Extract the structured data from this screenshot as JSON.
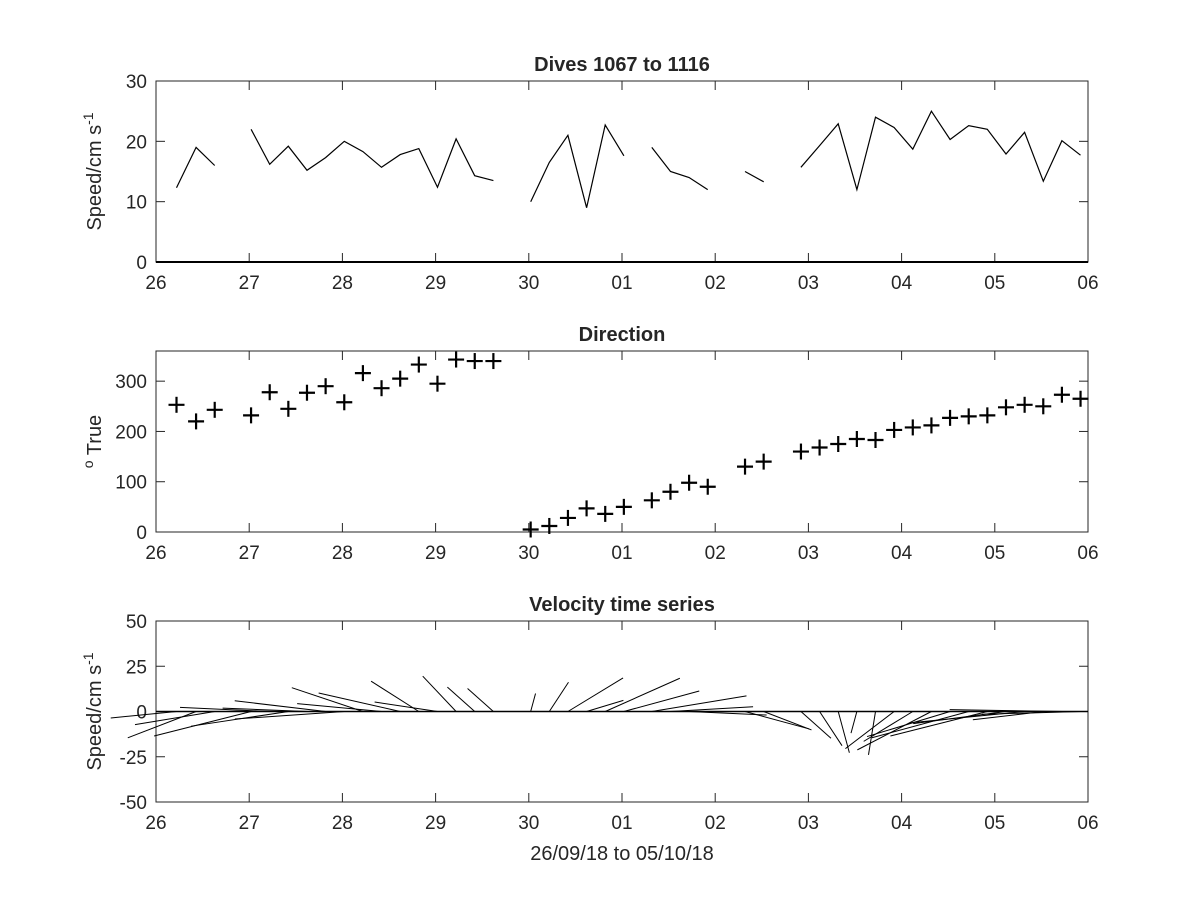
{
  "chart_data": [
    {
      "type": "line",
      "title": "Dives 1067 to 1116",
      "ylabel": "Speed/cm s",
      "ylabel_sup": "-1",
      "xlim": [
        0,
        10
      ],
      "ylim": [
        0,
        30
      ],
      "xticks": [
        0,
        1,
        2,
        3,
        4,
        5,
        6,
        7,
        8,
        9,
        10
      ],
      "xticklabels": [
        "26",
        "27",
        "28",
        "29",
        "30",
        "01",
        "02",
        "03",
        "04",
        "05",
        "06"
      ],
      "yticks": [
        0,
        10,
        20,
        30
      ],
      "yticklabels": [
        "0",
        "10",
        "20",
        "30"
      ],
      "segments": [
        [
          [
            0.22,
            12.3
          ],
          [
            0.43,
            19.0
          ],
          [
            0.63,
            16.0
          ]
        ],
        [
          [
            1.02,
            22.0
          ],
          [
            1.22,
            16.2
          ],
          [
            1.42,
            19.2
          ],
          [
            1.62,
            15.2
          ],
          [
            1.82,
            17.3
          ],
          [
            2.02,
            20.0
          ],
          [
            2.22,
            18.3
          ],
          [
            2.42,
            15.7
          ],
          [
            2.62,
            17.8
          ],
          [
            2.82,
            18.8
          ],
          [
            3.02,
            12.4
          ],
          [
            3.22,
            20.4
          ],
          [
            3.42,
            14.3
          ],
          [
            3.62,
            13.5
          ]
        ],
        [
          [
            4.02,
            10.0
          ],
          [
            4.22,
            16.5
          ],
          [
            4.42,
            21.0
          ],
          [
            4.62,
            9.0
          ],
          [
            4.82,
            22.7
          ],
          [
            5.02,
            17.6
          ]
        ],
        [
          [
            5.32,
            19.0
          ],
          [
            5.52,
            15.0
          ],
          [
            5.72,
            14.0
          ],
          [
            5.92,
            12.0
          ]
        ],
        [
          [
            6.32,
            15.0
          ],
          [
            6.52,
            13.3
          ]
        ],
        [
          [
            6.92,
            15.7
          ],
          [
            7.12,
            19.3
          ],
          [
            7.32,
            22.9
          ],
          [
            7.52,
            12.0
          ],
          [
            7.72,
            24.0
          ],
          [
            7.92,
            22.3
          ],
          [
            8.12,
            18.7
          ],
          [
            8.32,
            25.0
          ],
          [
            8.52,
            20.3
          ],
          [
            8.72,
            22.6
          ],
          [
            8.92,
            22.0
          ],
          [
            9.12,
            17.9
          ],
          [
            9.32,
            21.5
          ],
          [
            9.52,
            13.4
          ],
          [
            9.72,
            20.1
          ],
          [
            9.92,
            17.7
          ]
        ]
      ]
    },
    {
      "type": "scatter",
      "title": "Direction",
      "ylabel": "True",
      "ylabel_sup": "o",
      "xlim": [
        0,
        10
      ],
      "ylim": [
        0,
        360
      ],
      "xticks": [
        0,
        1,
        2,
        3,
        4,
        5,
        6,
        7,
        8,
        9,
        10
      ],
      "xticklabels": [
        "26",
        "27",
        "28",
        "29",
        "30",
        "01",
        "02",
        "03",
        "04",
        "05",
        "06"
      ],
      "yticks": [
        0,
        100,
        200,
        300
      ],
      "yticklabels": [
        "0",
        "100",
        "200",
        "300"
      ],
      "marker": "+",
      "points": [
        [
          0.22,
          253
        ],
        [
          0.43,
          220
        ],
        [
          0.63,
          243
        ],
        [
          1.02,
          232
        ],
        [
          1.22,
          278
        ],
        [
          1.42,
          245
        ],
        [
          1.62,
          277
        ],
        [
          1.82,
          290
        ],
        [
          2.02,
          258
        ],
        [
          2.22,
          316
        ],
        [
          2.42,
          286
        ],
        [
          2.62,
          305
        ],
        [
          2.82,
          333
        ],
        [
          3.02,
          295
        ],
        [
          3.22,
          343
        ],
        [
          3.42,
          340
        ],
        [
          3.62,
          340
        ],
        [
          4.02,
          5
        ],
        [
          4.22,
          12
        ],
        [
          4.42,
          28
        ],
        [
          4.62,
          47
        ],
        [
          4.82,
          36
        ],
        [
          5.02,
          50
        ],
        [
          5.32,
          63
        ],
        [
          5.52,
          80
        ],
        [
          5.72,
          98
        ],
        [
          5.92,
          90
        ],
        [
          6.32,
          130
        ],
        [
          6.52,
          140
        ],
        [
          6.92,
          160
        ],
        [
          7.12,
          168
        ],
        [
          7.32,
          175
        ],
        [
          7.52,
          185
        ],
        [
          7.72,
          183
        ],
        [
          7.92,
          203
        ],
        [
          8.12,
          208
        ],
        [
          8.32,
          212
        ],
        [
          8.52,
          227
        ],
        [
          8.72,
          230
        ],
        [
          8.92,
          232
        ],
        [
          9.12,
          248
        ],
        [
          9.32,
          253
        ],
        [
          9.52,
          250
        ],
        [
          9.72,
          273
        ],
        [
          9.92,
          265
        ]
      ]
    },
    {
      "type": "quiver",
      "title": "Velocity time series",
      "ylabel": "Speed/cm s",
      "ylabel_sup": "-1",
      "xlabel": "26/09/18 to 05/10/18",
      "xlim": [
        0,
        10
      ],
      "ylim": [
        -50,
        50
      ],
      "xticks": [
        0,
        1,
        2,
        3,
        4,
        5,
        6,
        7,
        8,
        9,
        10
      ],
      "xticklabels": [
        "26",
        "27",
        "28",
        "29",
        "30",
        "01",
        "02",
        "03",
        "04",
        "05",
        "06"
      ],
      "yticks": [
        -50,
        -25,
        0,
        25,
        50
      ],
      "yticklabels": [
        "-50",
        "-25",
        "0",
        "25",
        "50"
      ],
      "x_per_unit": 0.06,
      "vectors": [
        [
          0.22,
          12.3,
          253
        ],
        [
          0.43,
          19.0,
          220
        ],
        [
          0.63,
          16.0,
          243
        ],
        [
          1.02,
          22.0,
          232
        ],
        [
          1.22,
          16.2,
          278
        ],
        [
          1.42,
          19.2,
          245
        ],
        [
          1.62,
          15.2,
          277
        ],
        [
          1.82,
          17.3,
          290
        ],
        [
          2.02,
          20.0,
          258
        ],
        [
          2.22,
          18.3,
          316
        ],
        [
          2.42,
          15.7,
          286
        ],
        [
          2.62,
          17.8,
          305
        ],
        [
          2.82,
          18.8,
          333
        ],
        [
          3.02,
          12.4,
          295
        ],
        [
          3.22,
          20.4,
          343
        ],
        [
          3.42,
          14.3,
          340
        ],
        [
          3.62,
          13.5,
          340
        ],
        [
          4.02,
          10.0,
          5
        ],
        [
          4.22,
          16.5,
          12
        ],
        [
          4.42,
          21.0,
          28
        ],
        [
          4.62,
          9.0,
          47
        ],
        [
          4.82,
          22.7,
          36
        ],
        [
          5.02,
          17.6,
          50
        ],
        [
          5.32,
          19.0,
          63
        ],
        [
          5.52,
          15.0,
          80
        ],
        [
          5.72,
          14.0,
          98
        ],
        [
          5.92,
          12.0,
          90
        ],
        [
          6.32,
          15.0,
          130
        ],
        [
          6.52,
          13.3,
          140
        ],
        [
          6.92,
          15.7,
          160
        ],
        [
          7.12,
          19.3,
          168
        ],
        [
          7.32,
          22.9,
          175
        ],
        [
          7.52,
          12.0,
          185
        ],
        [
          7.72,
          24.0,
          183
        ],
        [
          7.92,
          22.3,
          203
        ],
        [
          8.12,
          18.7,
          208
        ],
        [
          8.32,
          25.0,
          212
        ],
        [
          8.52,
          20.3,
          227
        ],
        [
          8.72,
          22.6,
          230
        ],
        [
          8.92,
          22.0,
          232
        ],
        [
          9.12,
          17.9,
          248
        ],
        [
          9.32,
          21.5,
          253
        ],
        [
          9.52,
          13.4,
          250
        ],
        [
          9.72,
          20.1,
          273
        ],
        [
          9.92,
          17.7,
          265
        ]
      ]
    }
  ]
}
